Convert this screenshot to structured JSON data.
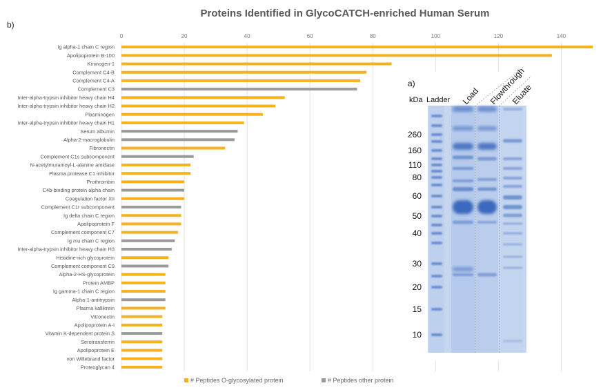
{
  "chart_data": {
    "type": "bar",
    "orientation": "horizontal",
    "title": "Proteins Identified in GlycoCATCH-enriched Human Serum",
    "panel_label": "b)",
    "xlim": [
      0,
      150
    ],
    "x_ticks": [
      "0",
      "20",
      "40",
      "60",
      "80",
      "100",
      "120",
      "140"
    ],
    "grid": true,
    "legend_position": "bottom-center",
    "series": [
      {
        "name": "# Peptides O-glycosylated protein",
        "color": "#F5B120"
      },
      {
        "name": "# Peptides other protein",
        "color": "#9A9A9A"
      }
    ],
    "categories": [
      "Ig alpha-1 chain C region",
      "Apolipoprotein B-100",
      "Kininogen-1",
      "Complement C4-B",
      "Complement C4-A",
      "Complement C3",
      "Inter-alpha-trypsin inhibitor heavy chain H4",
      "Inter-alpha-trypsin inhibitor heavy chain H2",
      "Plasminogen",
      "Inter-alpha-trypsin inhibitor heavy chain H1",
      "Serum albumin",
      "Alpha-2-macroglobulin",
      "Fibronectin",
      "Complement C1s subcomponent",
      "N-acetylmuramoyl-L-alanine amidase",
      "Plasma protease C1 inhibitor",
      "Prothrombin",
      "C4b-binding protein alpha chain",
      "Coagulation factor XII",
      "Complement C1r subcomponent",
      "Ig delta chain C region",
      "Apolipoprotein F",
      "Complement component C7",
      "Ig mu chain C region",
      "Inter-alpha-trypsin inhibitor heavy chain H3",
      "Histidine-rich glycoprotein",
      "Complement component C9",
      "Alpha-2-HS-glycoprotein",
      "Protein AMBP",
      "Ig gamma-1 chain C region",
      "Alpha-1-antitrypsin",
      "Plasma kallikrein",
      "Vitronectin",
      "Apolipoprotein A-I",
      "Vitamin K-dependent protein S",
      "Serotransferrin",
      "Apolipoprotein E",
      "von Willebrand factor",
      "Proteoglycan 4"
    ],
    "values": [
      150,
      137,
      86,
      78,
      76,
      75,
      52,
      49,
      45,
      39,
      37,
      36,
      33,
      23,
      22,
      22,
      20,
      20,
      20,
      19,
      19,
      19,
      18,
      17,
      16,
      15,
      15,
      14,
      14,
      14,
      14,
      14,
      13,
      13,
      13,
      13,
      13,
      13,
      13
    ],
    "series_index": [
      0,
      0,
      0,
      0,
      0,
      1,
      0,
      0,
      0,
      0,
      1,
      1,
      0,
      1,
      0,
      0,
      0,
      1,
      0,
      1,
      0,
      0,
      0,
      1,
      1,
      0,
      1,
      0,
      0,
      0,
      1,
      0,
      0,
      0,
      1,
      0,
      0,
      0,
      0
    ]
  },
  "gel": {
    "panel_label": "a)",
    "unit_label": "kDa",
    "ladder_label": "Ladder",
    "lane_labels": [
      "Load",
      "Flowthrough",
      "Eluate"
    ],
    "markers": [
      "260",
      "160",
      "110",
      "80",
      "60",
      "50",
      "40",
      "30",
      "20",
      "15",
      "10"
    ]
  }
}
